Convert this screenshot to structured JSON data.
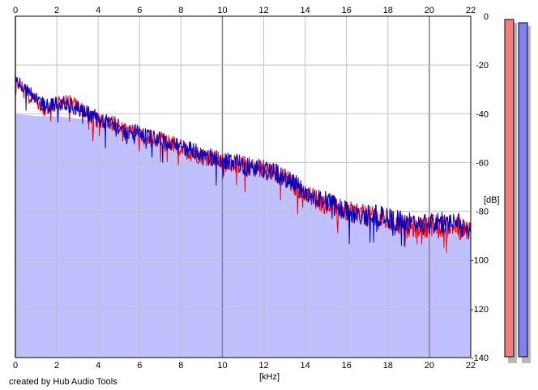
{
  "chart_data": {
    "type": "area",
    "title": "",
    "xlabel": "[kHz]",
    "ylabel": "[dB]",
    "credit": "created by Hub Audio Tools",
    "xlim": [
      0,
      22
    ],
    "ylim": [
      -140,
      0
    ],
    "x_ticks": [
      0,
      2,
      4,
      6,
      8,
      10,
      12,
      14,
      16,
      18,
      20,
      22
    ],
    "y_ticks": [
      0,
      -20,
      -40,
      -60,
      -80,
      -100,
      -120,
      -140
    ],
    "grid": true,
    "legend": "none",
    "colors": {
      "fill": "#c0c0ff",
      "left_channel": "#ff0000",
      "right_channel": "#0000c0",
      "grid": "#c0c0c0",
      "grid_major": "#808080",
      "meter_left": "#f08080",
      "meter_right": "#8080f0"
    },
    "x": [
      0,
      0.5,
      1,
      1.5,
      2,
      2.5,
      3,
      3.5,
      4,
      4.5,
      5,
      5.5,
      6,
      6.5,
      7,
      7.5,
      8,
      8.5,
      9,
      9.5,
      10,
      10.5,
      11,
      11.5,
      12,
      12.5,
      13,
      13.5,
      14,
      14.5,
      15,
      15.5,
      16,
      16.5,
      17,
      17.5,
      18,
      18.5,
      19,
      19.5,
      20,
      20.5,
      21,
      21.5,
      22
    ],
    "series": [
      {
        "values": [
          -27,
          -30,
          -35,
          -38,
          -36,
          -35,
          -37,
          -40,
          -43,
          -43,
          -45,
          -47,
          -49,
          -50,
          -51,
          -52,
          -54,
          -56,
          -57,
          -58,
          -60,
          -60,
          -61,
          -62,
          -63,
          -64,
          -66,
          -70,
          -72,
          -75,
          -77,
          -78,
          -80,
          -81,
          -82,
          -83,
          -84,
          -85,
          -87,
          -86,
          -86,
          -86,
          -86,
          -87,
          -88
        ]
      },
      {
        "values": [
          -26,
          -30,
          -34,
          -37,
          -36,
          -36,
          -38,
          -40,
          -42,
          -44,
          -46,
          -47,
          -48,
          -50,
          -51,
          -52,
          -54,
          -55,
          -57,
          -58,
          -59,
          -60,
          -61,
          -62,
          -63,
          -64,
          -66,
          -69,
          -72,
          -74,
          -76,
          -78,
          -80,
          -81,
          -82,
          -82,
          -83,
          -84,
          -85,
          -85,
          -85,
          -85,
          -85,
          -86,
          -87
        ]
      }
    ],
    "envelope": {
      "x": [
        0,
        1,
        2,
        3,
        4,
        5,
        6,
        7,
        8,
        9,
        10,
        11,
        12,
        13,
        14,
        15,
        16,
        17,
        18,
        19,
        20,
        21,
        22
      ],
      "values": [
        -40,
        -41,
        -41,
        -42,
        -43,
        -46,
        -49,
        -51,
        -53,
        -56,
        -58,
        -60,
        -62,
        -65,
        -71,
        -75,
        -79,
        -82,
        -85,
        -87,
        -86,
        -87,
        -88
      ]
    }
  }
}
